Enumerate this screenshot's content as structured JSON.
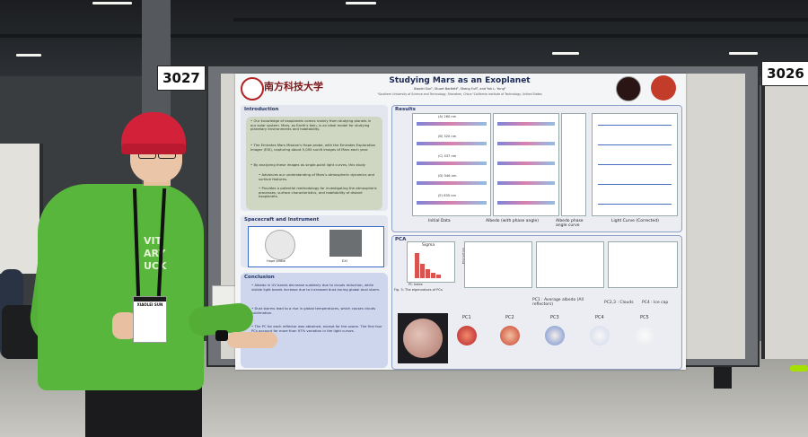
{
  "booths": {
    "left_number": "3027",
    "right_number": "3026"
  },
  "poster": {
    "university_name": "南方科技大学",
    "title": "Studying Mars as an Exoplanet",
    "authors": "Xiaolei Sun¹, Stuart Bartlett², Sheng Fuli¹, and Yuk L. Yung²",
    "affiliations": "¹Southern University of Science and Technology, Shenzhen, China   ²California Institute of Technology, United States",
    "introduction": {
      "heading": "Introduction",
      "points": [
        "• Our knowledge of exoplanets comes mainly from studying planets in our solar system. Mars, as Earth's twin, is an ideal model for studying planetary environments and habitability.",
        "• The Emirates Mars Mission's Hope probe, with the Emirates Exploration Imager (EXI), capturing about 5,000 sunlit images of Mars each year.",
        "• By analyzing these images as single-point light curves, this study",
        "• Advances our understanding of Mars's atmospheric dynamics and surface features.",
        "• Provides a potential methodology for investigating the atmospheric processes, surface characteristics, and habitability of distant exoplanets."
      ]
    },
    "spacecraft": {
      "heading": "Spacecraft and Instrument",
      "left_caption": "Hope probe",
      "right_caption": "EXI"
    },
    "conclusion": {
      "heading": "Conclusion",
      "points": [
        "• Albedo in UV bands decrease suddenly due to clouds reduction, while visible light bands increase due to increased dust during global dust storm.",
        "• Dust storms lead to a rise in global temperatures, which causes clouds sublimation.",
        "• The PC for each reflector was obtained, except for the ozone. The first four PCs account for more than 97% variation in the light curves."
      ]
    },
    "results": {
      "heading": "Results",
      "bands": [
        "(A) 260 nm",
        "(B) 320 nm",
        "(C) 437 nm",
        "(D) 546 nm",
        "(E) 635 nm"
      ],
      "col_labels": [
        "Initial Data",
        "Albedo (with phase angle)",
        "Albedo phase angle curve",
        "Light Curve (Corrected)"
      ]
    },
    "pca": {
      "heading": "PCA",
      "sigma_label": "Sigma",
      "fig_caption": "Fig. 3: The eigenvalues of PCs",
      "pc_index_label": "PC Index",
      "proportion_label": "Proportion",
      "pc_labels": [
        "PC1",
        "PC2",
        "PC3",
        "PC4",
        "PC5"
      ],
      "legend_pc1": "PC1 : Average albedo (All reflectors)",
      "legend_pc23": "PC2,3 : Clouds",
      "legend_pc4": "PC4 : Ice cap"
    }
  },
  "person": {
    "badge_name": "XIAOLEI SUN",
    "hoodie_print": [
      "VIT",
      "ARY",
      "UCK"
    ]
  },
  "colors": {
    "hoodie": "#58b63c",
    "beanie": "#d3213a",
    "poster_title": "#1b2a55"
  }
}
